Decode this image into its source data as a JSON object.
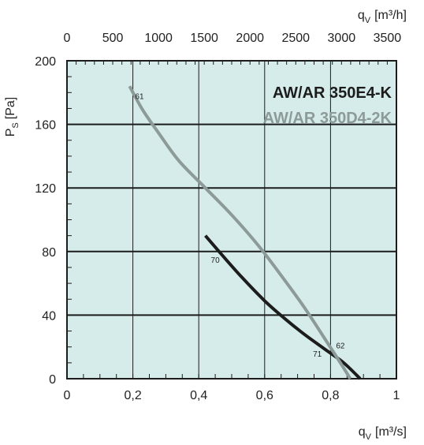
{
  "chart_data": {
    "type": "line",
    "x_bottom": {
      "label_main": "q",
      "label_sub": "V",
      "label_unit": "[m³/s]",
      "range": [
        0,
        1
      ],
      "ticks": [
        "0",
        "0,2",
        "0,4",
        "0,6",
        "0,8",
        "1"
      ]
    },
    "x_top": {
      "label_main": "q",
      "label_sub": "V",
      "label_unit": "[m³/h]",
      "range": [
        0,
        3600
      ],
      "ticks": [
        "0",
        "500",
        "1000",
        "1500",
        "2000",
        "2500",
        "3000",
        "3500"
      ]
    },
    "y": {
      "label_main": "P",
      "label_sub": "S",
      "label_unit": "[Pa]",
      "range": [
        0,
        200
      ],
      "ticks": [
        "0",
        "40",
        "80",
        "120",
        "160",
        "200"
      ]
    },
    "grid": true,
    "legend_position": "top-right",
    "series": [
      {
        "name": "AW/AR 350E4-K",
        "color": "#1c1c1c",
        "points": [
          [
            0.42,
            90
          ],
          [
            0.47,
            78
          ],
          [
            0.53,
            64
          ],
          [
            0.6,
            49
          ],
          [
            0.66,
            38
          ],
          [
            0.72,
            28
          ],
          [
            0.78,
            19
          ],
          [
            0.84,
            10
          ],
          [
            0.89,
            0
          ]
        ]
      },
      {
        "name": "AW/AR 350D4-2K",
        "color": "#8c9a98",
        "points": [
          [
            0.19,
            184
          ],
          [
            0.23,
            169
          ],
          [
            0.28,
            154
          ],
          [
            0.34,
            137
          ],
          [
            0.42,
            120
          ],
          [
            0.5,
            103
          ],
          [
            0.58,
            84
          ],
          [
            0.65,
            65
          ],
          [
            0.72,
            45
          ],
          [
            0.78,
            26
          ],
          [
            0.83,
            10
          ],
          [
            0.86,
            0
          ]
        ]
      }
    ],
    "annotations": [
      {
        "text": "61",
        "x": 0.22,
        "y": 176
      },
      {
        "text": "70",
        "x": 0.45,
        "y": 73
      },
      {
        "text": "71",
        "x": 0.76,
        "y": 14
      },
      {
        "text": "62",
        "x": 0.83,
        "y": 19
      }
    ]
  }
}
